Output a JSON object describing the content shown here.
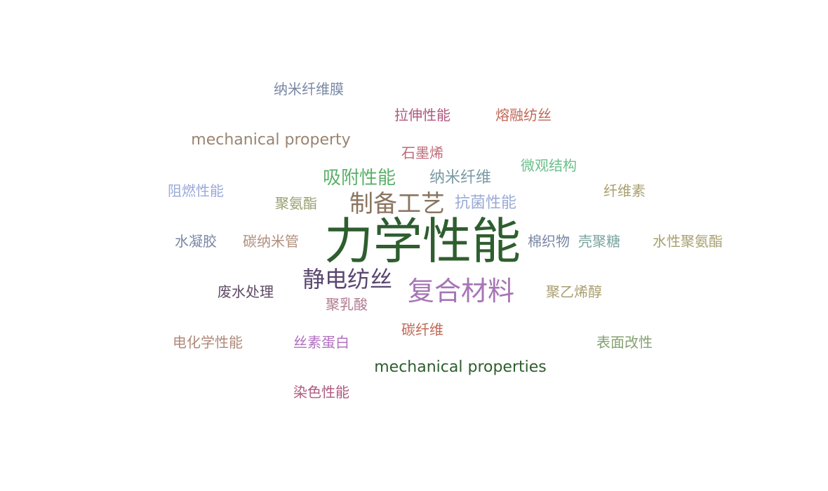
{
  "cloud": {
    "words": [
      {
        "text": "力学性能",
        "color": "#2e5e2e"
      },
      {
        "text": "复合材料",
        "color": "#a675b5"
      },
      {
        "text": "制备工艺",
        "color": "#8a7560"
      },
      {
        "text": "静电纺丝",
        "color": "#5a4770"
      },
      {
        "text": "mechanical property",
        "color": "#9a8470"
      },
      {
        "text": "mechanical properties",
        "color": "#2e5e2e"
      },
      {
        "text": "吸附性能",
        "color": "#5cb06a"
      },
      {
        "text": "纳米纤维",
        "color": "#7a9aa5"
      },
      {
        "text": "抗菌性能",
        "color": "#9aaad5"
      },
      {
        "text": "纳米纤维膜",
        "color": "#7a88a5"
      },
      {
        "text": "拉伸性能",
        "color": "#b0587e"
      },
      {
        "text": "熔融纺丝",
        "color": "#c06858"
      },
      {
        "text": "石墨烯",
        "color": "#c06878"
      },
      {
        "text": "微观结构",
        "color": "#6ac08a"
      },
      {
        "text": "阻燃性能",
        "color": "#9aaad8"
      },
      {
        "text": "聚氨酯",
        "color": "#96a070"
      },
      {
        "text": "纤维素",
        "color": "#a8a070"
      },
      {
        "text": "水凝胶",
        "color": "#7a88a5"
      },
      {
        "text": "碳纳米管",
        "color": "#b0907e"
      },
      {
        "text": "棉织物",
        "color": "#7a88a5"
      },
      {
        "text": "壳聚糖",
        "color": "#7aa5a0"
      },
      {
        "text": "水性聚氨酯",
        "color": "#a8a070"
      },
      {
        "text": "废水处理",
        "color": "#604a66"
      },
      {
        "text": "聚乳酸",
        "color": "#b07a90"
      },
      {
        "text": "聚乙烯醇",
        "color": "#a89e70"
      },
      {
        "text": "碳纤维",
        "color": "#c06858"
      },
      {
        "text": "电化学性能",
        "color": "#b08a7a"
      },
      {
        "text": "丝素蛋白",
        "color": "#b070c0"
      },
      {
        "text": "表面改性",
        "color": "#86a070"
      },
      {
        "text": "染色性能",
        "color": "#b05a80"
      }
    ]
  }
}
